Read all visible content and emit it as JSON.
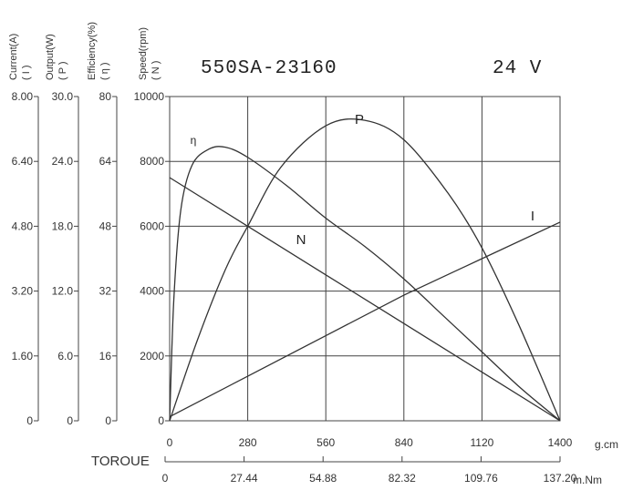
{
  "title": "550SA-23160",
  "voltage": "24 V",
  "axes": {
    "current": {
      "label": "Current(A)",
      "symbol": "( I )",
      "ticks": [
        "0",
        "1.60",
        "3.20",
        "4.80",
        "6.40",
        "8.00"
      ]
    },
    "output": {
      "label": "Output(W)",
      "symbol": "( P )",
      "ticks": [
        "0",
        "6.0",
        "12.0",
        "18.0",
        "24.0",
        "30.0"
      ]
    },
    "efficiency": {
      "label": "Efficiency(%)",
      "symbol": "( η )",
      "ticks": [
        "0",
        "16",
        "32",
        "48",
        "64",
        "80"
      ]
    },
    "speed": {
      "label": "Speed(rpm)",
      "symbol": "( N )",
      "ticks": [
        "0",
        "2000",
        "4000",
        "6000",
        "8000",
        "10000"
      ]
    },
    "torque": {
      "label": "TOROUE",
      "gcm_unit": "g.cm",
      "gcm_ticks": [
        "0",
        "280",
        "560",
        "840",
        "1120",
        "1400"
      ],
      "mnm_unit": "m.Nm",
      "mnm_ticks": [
        "0",
        "27.44",
        "54.88",
        "82.32",
        "109.76",
        "137.20"
      ]
    }
  },
  "chart_data": {
    "type": "line",
    "title": "550SA-23160",
    "subtitle": "24 V",
    "xlabel": "TOROUE",
    "x_unit": "g.cm",
    "xlim": [
      0,
      1400
    ],
    "ylim": [
      0,
      10000
    ],
    "y_axes": [
      {
        "label": "Current(A)",
        "range": [
          0,
          8.0
        ]
      },
      {
        "label": "Output(W)",
        "range": [
          0,
          30.0
        ]
      },
      {
        "label": "Efficiency(%)",
        "range": [
          0,
          80
        ]
      },
      {
        "label": "Speed(rpm)",
        "range": [
          0,
          10000
        ]
      }
    ],
    "grid": true,
    "series": [
      {
        "name": "N",
        "axis": "Speed(rpm)",
        "color": "#333333",
        "x": [
          0,
          280,
          560,
          840,
          1120,
          1400
        ],
        "y": [
          7500,
          6000,
          4500,
          3000,
          1500,
          0
        ]
      },
      {
        "name": "I",
        "axis": "Current(A)",
        "color": "#333333",
        "x": [
          0,
          280,
          560,
          840,
          1120,
          1400
        ],
        "y": [
          0.1,
          1.1,
          2.1,
          3.1,
          4.0,
          4.9
        ]
      },
      {
        "name": "P",
        "axis": "Output(W)",
        "color": "#333333",
        "x": [
          0,
          100,
          200,
          280,
          400,
          560,
          700,
          840,
          1000,
          1120,
          1250,
          1400
        ],
        "y": [
          0,
          7.5,
          14.0,
          18.0,
          23.5,
          27.3,
          27.8,
          26.0,
          21.0,
          16.0,
          9.0,
          0
        ]
      },
      {
        "name": "η",
        "axis": "Efficiency(%)",
        "color": "#333333",
        "x": [
          0,
          15,
          40,
          80,
          140,
          200,
          280,
          420,
          560,
          700,
          840,
          980,
          1120,
          1260,
          1400
        ],
        "y": [
          0,
          30,
          52,
          63,
          67,
          67.5,
          65,
          58,
          50,
          43,
          35,
          26,
          17,
          8,
          0
        ]
      }
    ]
  },
  "colors": {
    "line": "#333333",
    "grid": "#444444",
    "background": "#ffffff"
  }
}
